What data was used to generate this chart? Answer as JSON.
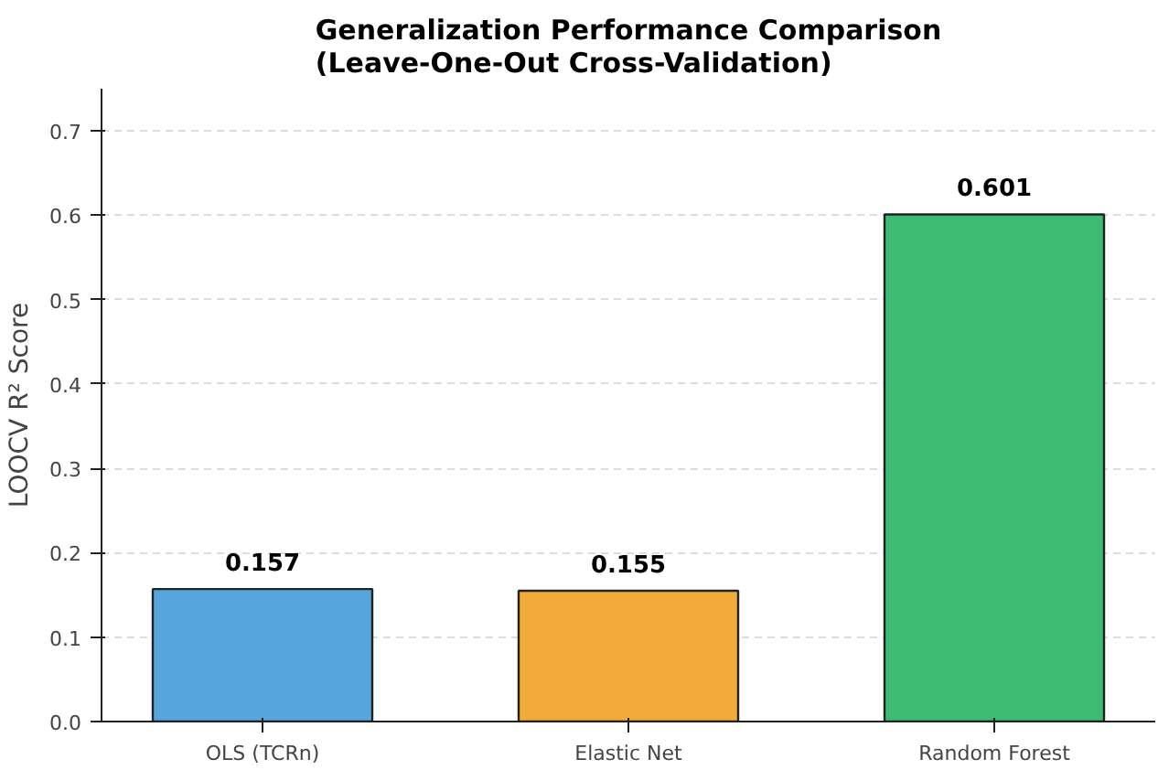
{
  "chart_data": {
    "type": "bar",
    "title": "Generalization Performance Comparison\n(Leave-One-Out Cross-Validation)",
    "ylabel": "LOOCV R² Score",
    "categories": [
      "OLS (TCRn)",
      "Elastic Net",
      "Random Forest"
    ],
    "values": [
      0.157,
      0.155,
      0.601
    ],
    "colors": [
      "#56a5dc",
      "#f2aa38",
      "#3dba74"
    ],
    "ylim": [
      0,
      0.75
    ],
    "yticks": [
      {
        "value": 0,
        "label": "0.0"
      },
      0.1,
      0.2,
      0.3,
      0.4,
      0.5,
      0.6,
      0.7
    ],
    "grid": "y",
    "data_labels": true
  }
}
